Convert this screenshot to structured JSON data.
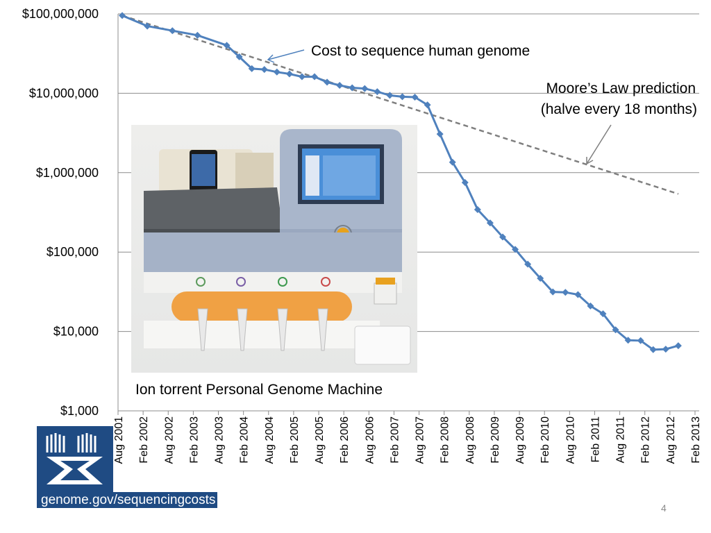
{
  "chart_data": {
    "type": "line",
    "y_scale": "log",
    "ylim": [
      1000,
      100000000
    ],
    "y_ticks": [
      "$1,000",
      "$10,000",
      "$100,000",
      "$1,000,000",
      "$10,000,000",
      "$100,000,000"
    ],
    "x_ticks": [
      "Aug 2001",
      "Feb 2002",
      "Aug 2002",
      "Feb 2003",
      "Aug 2003",
      "Feb 2004",
      "Aug 2004",
      "Feb 2005",
      "Aug 2005",
      "Feb 2006",
      "Aug 2006",
      "Feb 2007",
      "Aug 2007",
      "Feb 2008",
      "Aug 2008",
      "Feb 2009",
      "Aug 2009",
      "Feb 2010",
      "Aug 2010",
      "Feb 2011",
      "Aug 2011",
      "Feb 2012",
      "Aug 2012",
      "Feb 2013"
    ],
    "grid": "horizontal",
    "series": [
      {
        "name": "Cost to sequence human genome",
        "color": "#4f81bd",
        "marker": "diamond",
        "x": [
          "Sep 2001",
          "Mar 2002",
          "Sep 2002",
          "Mar 2003",
          "Oct 2003",
          "Jan 2004",
          "Apr 2004",
          "Jul 2004",
          "Oct 2004",
          "Jan 2005",
          "Apr 2005",
          "Jul 2005",
          "Oct 2005",
          "Jan 2006",
          "Apr 2006",
          "Jul 2006",
          "Oct 2006",
          "Jan 2007",
          "Apr 2007",
          "Jul 2007",
          "Oct 2007",
          "Jan 2008",
          "Apr 2008",
          "Jul 2008",
          "Oct 2008",
          "Jan 2009",
          "Apr 2009",
          "Jul 2009",
          "Oct 2009",
          "Jan 2010",
          "Apr 2010",
          "Jul 2010",
          "Oct 2010",
          "Jan 2011",
          "Apr 2011",
          "Jul 2011",
          "Oct 2011",
          "Jan 2012",
          "Apr 2012",
          "Jul 2012",
          "Oct 2012"
        ],
        "values": [
          95263072,
          70175437,
          61448422,
          53751684,
          40157554,
          28780376,
          20442576,
          19934346,
          18519312,
          17534970,
          16159699,
          16180224,
          13801124,
          12585659,
          11732535,
          11455315,
          10474556,
          9408739,
          9047003,
          8927342,
          7147571,
          3063820,
          1352982,
          752080,
          342502,
          232735,
          154714,
          108065,
          70333,
          46774,
          31512,
          31125,
          29092,
          20963,
          16712,
          10497,
          7743,
          7666,
          5901,
          5985,
          6618
        ]
      },
      {
        "name": "Moore’s Law prediction",
        "color": "#7f7f7f",
        "style": "dashed",
        "x": [
          "Sep 2001",
          "Oct 2012"
        ],
        "values": [
          95263072,
          540000
        ]
      }
    ],
    "annotations": [
      {
        "text": "Cost to sequence human genome",
        "target": "Cost to sequence human genome"
      },
      {
        "text": "Moore’s Law prediction",
        "text2": "(halve every 18 months)",
        "target": "Moore’s Law prediction"
      }
    ]
  },
  "caption": "Ion torrent Personal Genome Machine",
  "source_url": "genome.gov/sequencingcosts",
  "page_number": "4",
  "icons": {
    "logo": "genome-gov-x-logo-icon",
    "photo": "ion-torrent-machine-photo"
  }
}
